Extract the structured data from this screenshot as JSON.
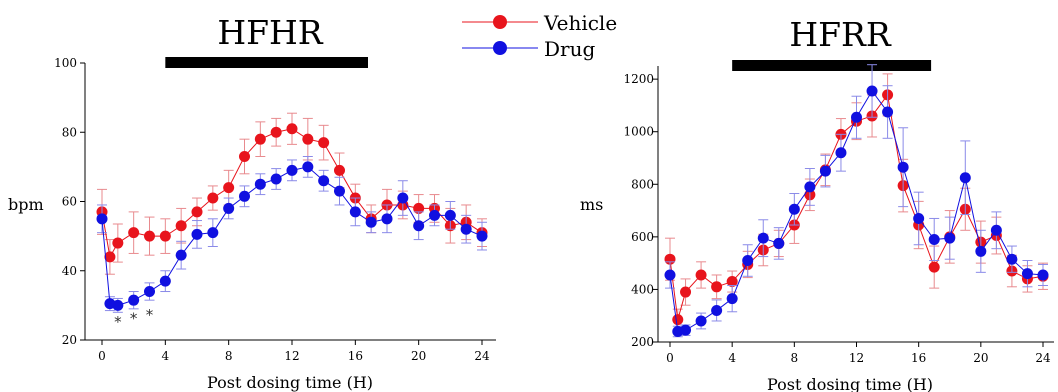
{
  "legend": {
    "entries": [
      {
        "label": "Vehicle",
        "color": "#e8141c"
      },
      {
        "label": "Drug",
        "color": "#1010e0"
      }
    ]
  },
  "chart_data": [
    {
      "type": "line",
      "title": "HFHR",
      "xlabel": "Post dosing time (H)",
      "ylabel": "bpm",
      "xlim": [
        0,
        24
      ],
      "ylim": [
        20,
        100
      ],
      "xticks": [
        0,
        4,
        8,
        12,
        16,
        20,
        24
      ],
      "yticks": [
        20,
        40,
        60,
        80,
        100
      ],
      "dosing_bar": [
        4,
        16.8
      ],
      "annotations": [
        {
          "text": "*",
          "x": 1,
          "y": 25.5
        },
        {
          "text": "*",
          "x": 2,
          "y": 26.5
        },
        {
          "text": "*",
          "x": 3,
          "y": 27.5
        }
      ],
      "series": [
        {
          "name": "Vehicle",
          "color": "#e8141c",
          "x": [
            0,
            0.5,
            1,
            2,
            3,
            4,
            5,
            6,
            7,
            8,
            9,
            10,
            11,
            12,
            13,
            14,
            15,
            16,
            17,
            18,
            19,
            20,
            21,
            22,
            23,
            24
          ],
          "y": [
            57,
            44,
            48,
            51,
            50,
            50,
            53,
            57,
            61,
            64,
            73,
            78,
            80,
            81,
            78,
            77,
            69,
            61,
            55,
            59,
            59,
            58,
            58,
            53,
            54,
            51
          ],
          "err": [
            6.5,
            5,
            5.5,
            6,
            5.5,
            5,
            5,
            4,
            3.5,
            5,
            5,
            5,
            4,
            4.5,
            6,
            5,
            5,
            4,
            4,
            4.5,
            4,
            4,
            4,
            5,
            5,
            4
          ]
        },
        {
          "name": "Drug",
          "color": "#1010e0",
          "x": [
            0,
            0.5,
            1,
            2,
            3,
            4,
            5,
            6,
            7,
            8,
            9,
            10,
            11,
            12,
            13,
            14,
            15,
            16,
            17,
            18,
            19,
            20,
            21,
            22,
            23,
            24
          ],
          "y": [
            55,
            30.5,
            30,
            31.5,
            34,
            37,
            44.5,
            50.5,
            51,
            58,
            61.5,
            65,
            66.5,
            69,
            70,
            66,
            63,
            57,
            54,
            55,
            61,
            53,
            56,
            56,
            52,
            50
          ],
          "err": [
            4,
            2,
            2,
            2.5,
            2.5,
            3,
            4,
            4,
            4,
            3,
            3,
            3,
            3,
            3,
            3,
            3,
            4,
            4,
            3,
            4,
            5,
            4,
            3,
            4,
            4,
            4
          ]
        }
      ]
    },
    {
      "type": "line",
      "title": "HFRR",
      "xlabel": "Post dosing time (H)",
      "ylabel": "ms",
      "xlim": [
        0,
        24
      ],
      "ylim": [
        200,
        1250
      ],
      "xticks": [
        0,
        4,
        8,
        12,
        16,
        20,
        24
      ],
      "yticks": [
        200,
        400,
        600,
        800,
        1000,
        1200
      ],
      "dosing_bar": [
        4,
        16.8
      ],
      "series": [
        {
          "name": "Vehicle",
          "color": "#e8141c",
          "x": [
            0,
            0.5,
            1,
            2,
            3,
            4,
            5,
            6,
            7,
            8,
            9,
            10,
            11,
            12,
            13,
            14,
            15,
            16,
            17,
            18,
            19,
            20,
            21,
            22,
            23,
            24
          ],
          "y": [
            515,
            285,
            390,
            455,
            410,
            430,
            495,
            550,
            575,
            645,
            760,
            855,
            990,
            1040,
            1060,
            1140,
            795,
            645,
            485,
            600,
            705,
            580,
            605,
            470,
            440,
            450
          ],
          "err": [
            80,
            40,
            50,
            50,
            45,
            40,
            50,
            60,
            50,
            70,
            60,
            60,
            60,
            70,
            80,
            80,
            100,
            90,
            80,
            100,
            80,
            80,
            70,
            60,
            50,
            50
          ]
        },
        {
          "name": "Drug",
          "color": "#1010e0",
          "x": [
            0,
            0.5,
            1,
            2,
            3,
            4,
            5,
            6,
            7,
            8,
            9,
            10,
            11,
            12,
            13,
            14,
            15,
            16,
            17,
            18,
            19,
            20,
            21,
            22,
            23,
            24
          ],
          "y": [
            455,
            240,
            245,
            280,
            320,
            365,
            510,
            595,
            575,
            705,
            790,
            850,
            920,
            1055,
            1155,
            1075,
            865,
            670,
            590,
            595,
            825,
            545,
            625,
            515,
            460,
            455
          ],
          "err": [
            50,
            20,
            20,
            30,
            40,
            50,
            60,
            70,
            60,
            60,
            70,
            60,
            70,
            80,
            100,
            100,
            150,
            100,
            80,
            80,
            140,
            80,
            70,
            50,
            50,
            40
          ]
        }
      ]
    }
  ]
}
